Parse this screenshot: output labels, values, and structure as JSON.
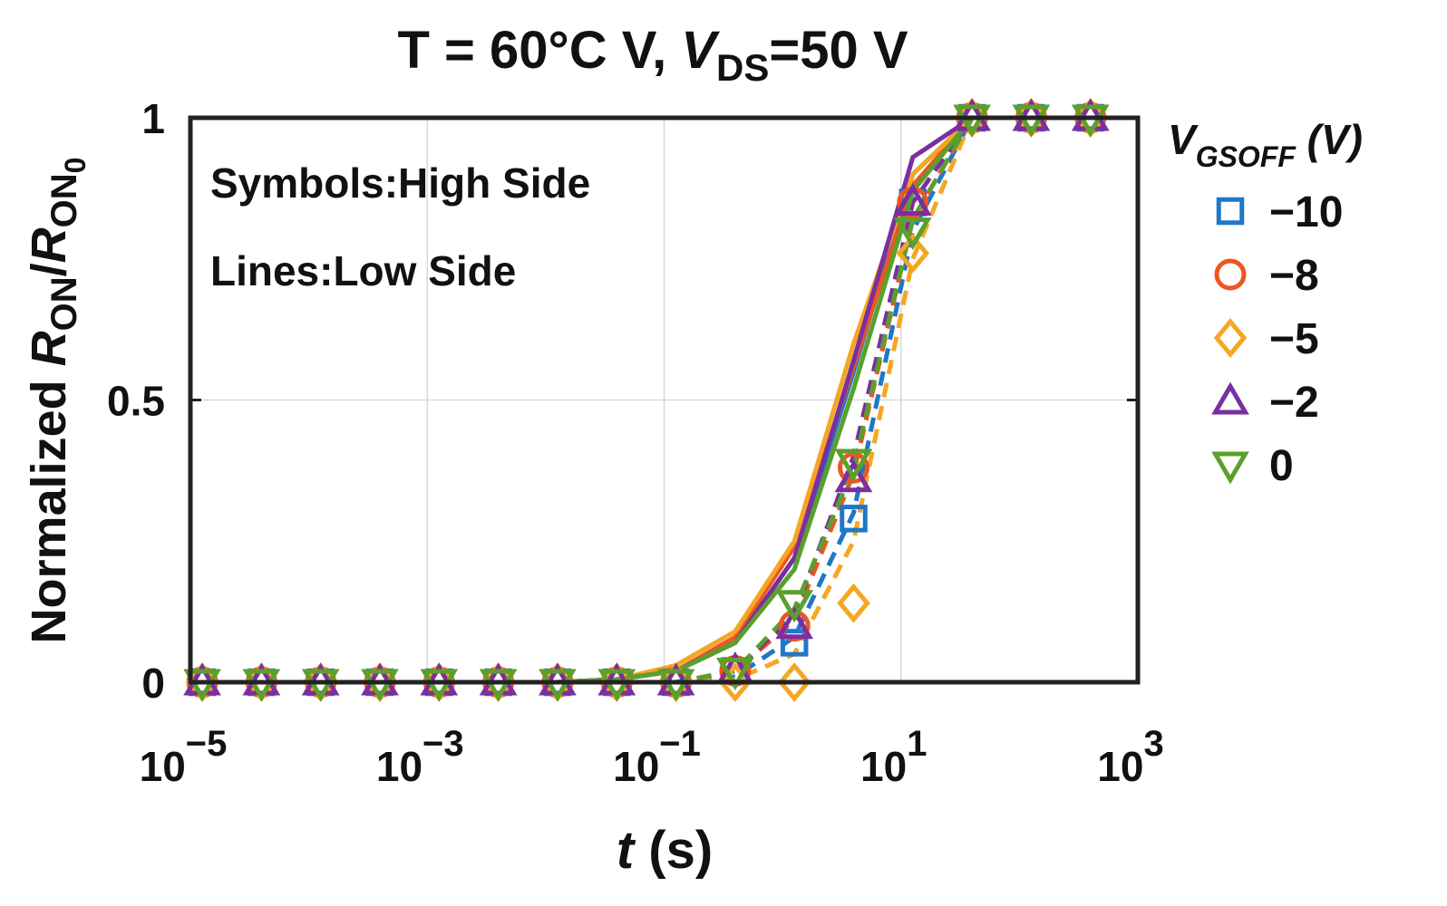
{
  "chart_data": {
    "type": "line",
    "title_main": "T = 60°C V, ",
    "title_var": "V",
    "title_sub": "DS",
    "title_tail": "=50 V",
    "xlabel_var": "t",
    "xlabel_unit": " (s)",
    "ylabel_prefix": "Normalized ",
    "ylabel_r1": "R",
    "ylabel_on1": "ON",
    "ylabel_slash": "/",
    "ylabel_r2": "R",
    "ylabel_on2": "ON",
    "ylabel_zero": "0",
    "x_scale": "log",
    "xlim": [
      -5,
      3
    ],
    "ylim": [
      0,
      1
    ],
    "x_ticks": [
      {
        "base": "10",
        "exp": "−5",
        "value": -5
      },
      {
        "base": "10",
        "exp": "−3",
        "value": -3
      },
      {
        "base": "10",
        "exp": "−1",
        "value": -1
      },
      {
        "base": "10",
        "exp": "1",
        "value": 1
      },
      {
        "base": "10",
        "exp": "3",
        "value": 3
      }
    ],
    "y_ticks": [
      {
        "label": "0",
        "value": 0
      },
      {
        "label": "0.5",
        "value": 0.5
      },
      {
        "label": "1",
        "value": 1
      }
    ],
    "annotations": [
      "Symbols:High Side",
      "Lines:Low Side"
    ],
    "legend_title_var": "V",
    "legend_title_sub": "GSOFF",
    "legend_title_unit": " (V)",
    "legend_position": "outside-right",
    "x_log": [
      -4.9,
      -4.4,
      -3.9,
      -3.4,
      -2.9,
      -2.4,
      -1.9,
      -1.4,
      -0.9,
      -0.4,
      0.1,
      0.6,
      1.1,
      1.6,
      2.1,
      2.6
    ],
    "series": [
      {
        "name": "−10",
        "marker": "square",
        "color": "#1f77c8",
        "high_side": [
          0,
          0,
          0,
          0,
          0,
          0,
          0,
          0,
          0,
          0.02,
          0.07,
          0.29,
          0.85,
          1,
          1,
          1
        ],
        "low_side": [
          0,
          0,
          0,
          0,
          0,
          0,
          0,
          0.005,
          0.02,
          0.07,
          0.22,
          0.55,
          0.9,
          1,
          1,
          1
        ],
        "high_side_dashed": [
          0,
          0,
          0,
          0,
          0,
          0,
          0,
          0,
          0,
          0.01,
          0.08,
          0.3,
          0.8,
          1,
          1,
          1
        ]
      },
      {
        "name": "−8",
        "marker": "circle",
        "color": "#ee5522",
        "high_side": [
          0,
          0,
          0,
          0,
          0,
          0,
          0,
          0,
          0,
          0.02,
          0.1,
          0.38,
          0.85,
          1,
          1,
          1
        ],
        "low_side": [
          0,
          0,
          0,
          0,
          0,
          0,
          0,
          0.005,
          0.02,
          0.08,
          0.24,
          0.56,
          0.88,
          1,
          1,
          1
        ],
        "high_side_dashed": [
          0,
          0,
          0,
          0,
          0,
          0,
          0,
          0,
          0,
          0.02,
          0.11,
          0.37,
          0.82,
          1,
          1,
          1
        ]
      },
      {
        "name": "−5",
        "marker": "diamond",
        "color": "#f5a623",
        "high_side": [
          0,
          0,
          0,
          0,
          0,
          0,
          0,
          0,
          0,
          0,
          0,
          0.14,
          0.76,
          1,
          1,
          1
        ],
        "low_side": [
          0,
          0,
          0,
          0,
          0,
          0,
          0,
          0.005,
          0.03,
          0.09,
          0.25,
          0.6,
          0.9,
          1,
          1,
          1
        ],
        "high_side_dashed": [
          0,
          0,
          0,
          0,
          0,
          0,
          0,
          0,
          0,
          0.005,
          0.05,
          0.25,
          0.75,
          1,
          1,
          1
        ]
      },
      {
        "name": "−2",
        "marker": "triangle-up",
        "color": "#7a2fa0",
        "high_side": [
          0,
          0,
          0,
          0,
          0,
          0,
          0,
          0,
          0,
          0.02,
          0.1,
          0.36,
          0.85,
          1,
          1,
          1
        ],
        "low_side": [
          0,
          0,
          0,
          0,
          0,
          0,
          0,
          0.005,
          0.02,
          0.07,
          0.22,
          0.57,
          0.93,
          1,
          1,
          1
        ],
        "high_side_dashed": [
          0,
          0,
          0,
          0,
          0,
          0,
          0,
          0,
          0,
          0.02,
          0.12,
          0.4,
          0.85,
          1,
          1,
          1
        ]
      },
      {
        "name": "0",
        "marker": "triangle-down",
        "color": "#5aa02c",
        "high_side": [
          0,
          0,
          0,
          0,
          0,
          0,
          0,
          0,
          0,
          0.02,
          0.14,
          0.39,
          0.8,
          1,
          1,
          1
        ],
        "low_side": [
          0,
          0,
          0,
          0,
          0,
          0,
          0,
          0.005,
          0.02,
          0.07,
          0.2,
          0.52,
          0.87,
          1,
          1,
          1
        ],
        "high_side_dashed": [
          0,
          0,
          0,
          0,
          0,
          0,
          0,
          0,
          0,
          0.02,
          0.13,
          0.38,
          0.82,
          1,
          1,
          1
        ]
      }
    ]
  }
}
